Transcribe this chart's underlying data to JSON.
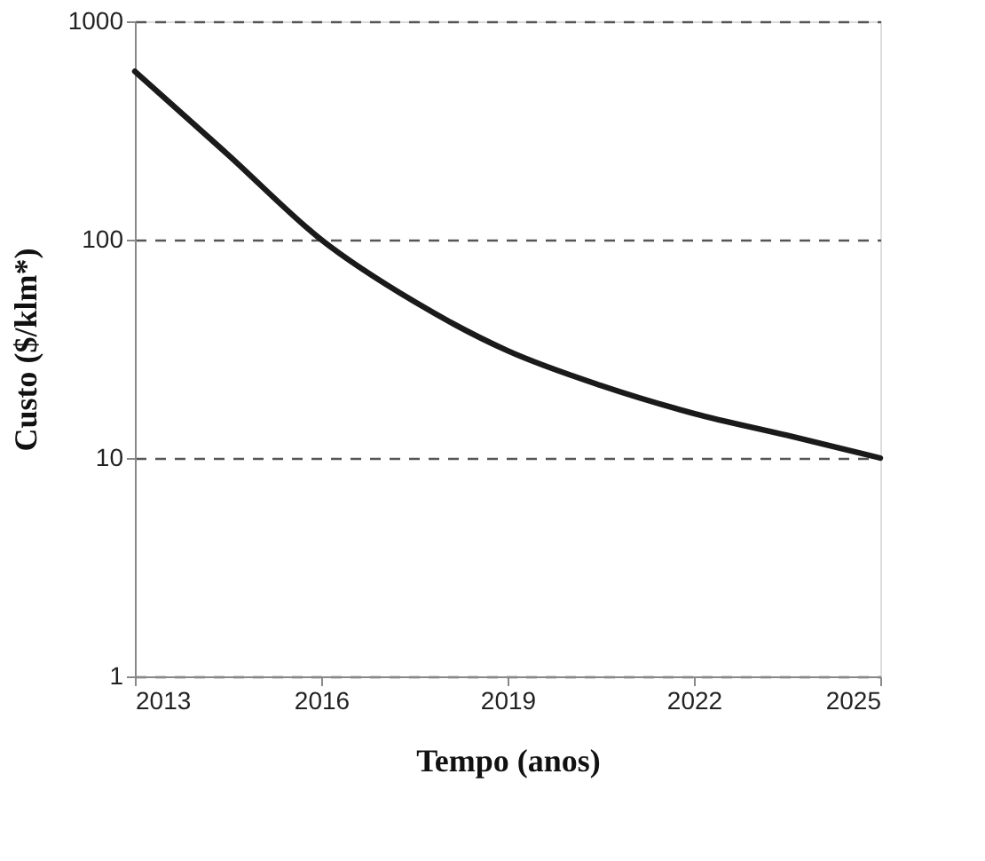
{
  "chart_data": {
    "type": "line",
    "xlabel": "Tempo (anos)",
    "ylabel": "Custo ($/klm*)",
    "x": [
      2013,
      2014.5,
      2016,
      2017.5,
      2019,
      2020.5,
      2022,
      2023.5,
      2025
    ],
    "series": [
      {
        "color": "#1a1a1a",
        "values": [
          590,
          245,
          100,
          52,
          31,
          21.5,
          16,
          12.7,
          10
        ]
      }
    ],
    "xlim": [
      2013,
      2025
    ],
    "xticks": [
      2013,
      2016,
      2019,
      2022,
      2025
    ],
    "ylim": [
      1,
      1000
    ],
    "yticks": [
      1,
      10,
      100,
      1000
    ],
    "log": "y",
    "grid": "y",
    "legend": false,
    "marker": "none",
    "line_style": "solid"
  }
}
